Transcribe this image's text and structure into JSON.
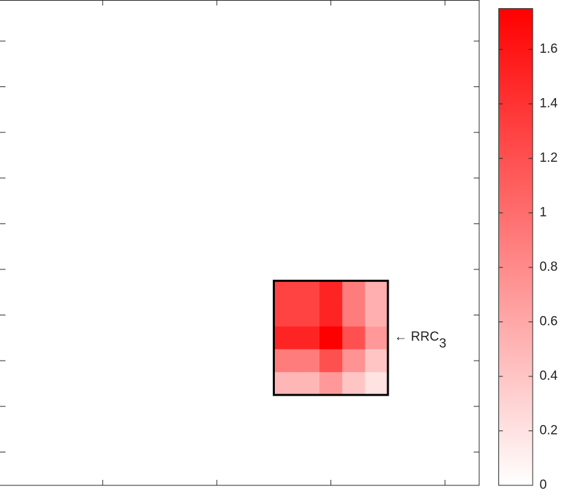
{
  "chart_data": {
    "type": "heatmap",
    "cells": [
      [
        1.3,
        1.3,
        1.5,
        0.9,
        0.55
      ],
      [
        1.3,
        1.3,
        1.5,
        0.9,
        0.55
      ],
      [
        1.5,
        1.5,
        1.75,
        1.2,
        0.7
      ],
      [
        0.9,
        0.9,
        1.2,
        0.75,
        0.4
      ],
      [
        0.5,
        0.5,
        0.7,
        0.4,
        0.2
      ]
    ],
    "cell_x": [
      12,
      13,
      14,
      15,
      16
    ],
    "cell_y": [
      12,
      13,
      14,
      15,
      16
    ],
    "xlim": [
      0,
      21
    ],
    "ylim": [
      -0.3,
      20.96
    ],
    "xticks": [
      4.5,
      9.5,
      14.5,
      19.5
    ],
    "yticks": [
      1.5,
      3.5,
      5.5,
      7.5,
      9.5,
      11.5,
      13.5,
      15.5,
      17.5,
      19.5
    ],
    "color": "#ff0000",
    "colorbar": {
      "clim": [
        0,
        1.75
      ],
      "ticks": [
        0,
        0.2,
        0.4,
        0.6,
        0.8,
        1,
        1.2,
        1.4,
        1.6
      ]
    },
    "annotation": {
      "text": "← RRC",
      "subscript": "3"
    }
  }
}
